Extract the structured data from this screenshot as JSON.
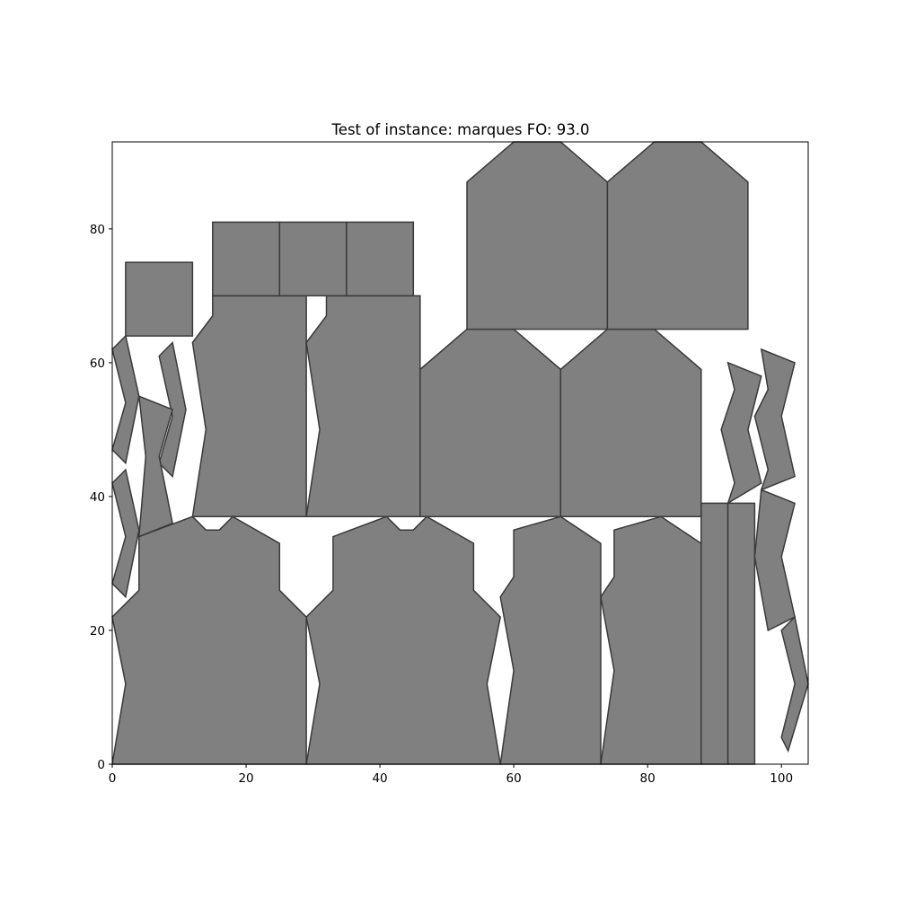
{
  "chart_data": {
    "type": "polygon-layout",
    "title": "Test of instance: marques  FO: 93.0",
    "xlabel": "",
    "ylabel": "",
    "xlim": [
      0,
      104
    ],
    "ylim": [
      0,
      93
    ],
    "xticks": [
      0,
      20,
      40,
      60,
      80,
      100
    ],
    "yticks": [
      0,
      20,
      40,
      60,
      80
    ],
    "grid": false,
    "fill_color": "#808080",
    "edge_color": "#3a3a3a",
    "pieces": [
      [
        [
          0,
          0
        ],
        [
          29,
          0
        ],
        [
          29,
          22
        ],
        [
          25,
          26
        ],
        [
          25,
          33
        ],
        [
          18,
          37
        ],
        [
          16,
          35
        ],
        [
          14,
          35
        ],
        [
          12,
          37
        ],
        [
          4,
          34
        ],
        [
          4,
          26
        ],
        [
          0,
          22
        ],
        [
          2,
          12
        ]
      ],
      [
        [
          29,
          0
        ],
        [
          58,
          0
        ],
        [
          56,
          12
        ],
        [
          58,
          22
        ],
        [
          54,
          26
        ],
        [
          54,
          33
        ],
        [
          47,
          37
        ],
        [
          45,
          35
        ],
        [
          43,
          35
        ],
        [
          41,
          37
        ],
        [
          33,
          34
        ],
        [
          33,
          26
        ],
        [
          29,
          22
        ],
        [
          31,
          12
        ]
      ],
      [
        [
          58,
          0
        ],
        [
          73,
          0
        ],
        [
          73,
          33
        ],
        [
          67,
          37
        ],
        [
          60,
          35
        ],
        [
          60,
          28
        ],
        [
          58,
          25
        ],
        [
          60,
          14
        ]
      ],
      [
        [
          73,
          0
        ],
        [
          88,
          0
        ],
        [
          88,
          33
        ],
        [
          82,
          37
        ],
        [
          75,
          35
        ],
        [
          75,
          28
        ],
        [
          73,
          25
        ],
        [
          75,
          14
        ]
      ],
      [
        [
          88,
          0
        ],
        [
          92,
          0
        ],
        [
          92,
          39
        ],
        [
          88,
          39
        ]
      ],
      [
        [
          92,
          0
        ],
        [
          96,
          0
        ],
        [
          96,
          39
        ],
        [
          92,
          39
        ]
      ],
      [
        [
          12,
          37
        ],
        [
          29,
          37
        ],
        [
          29,
          70
        ],
        [
          15,
          70
        ],
        [
          15,
          67
        ],
        [
          12,
          63
        ],
        [
          14,
          50
        ]
      ],
      [
        [
          29,
          37
        ],
        [
          46,
          37
        ],
        [
          46,
          70
        ],
        [
          32,
          70
        ],
        [
          32,
          67
        ],
        [
          29,
          63
        ],
        [
          31,
          50
        ]
      ],
      [
        [
          46,
          37
        ],
        [
          67,
          37
        ],
        [
          67,
          59
        ],
        [
          60,
          65
        ],
        [
          53,
          65
        ],
        [
          46,
          59
        ]
      ],
      [
        [
          67,
          37
        ],
        [
          88,
          37
        ],
        [
          88,
          59
        ],
        [
          81,
          65
        ],
        [
          74,
          65
        ],
        [
          67,
          59
        ]
      ],
      [
        [
          53,
          65
        ],
        [
          74,
          65
        ],
        [
          74,
          87
        ],
        [
          67,
          93
        ],
        [
          60,
          93
        ],
        [
          53,
          87
        ]
      ],
      [
        [
          74,
          65
        ],
        [
          95,
          65
        ],
        [
          95,
          87
        ],
        [
          88,
          93
        ],
        [
          81,
          93
        ],
        [
          74,
          87
        ]
      ],
      [
        [
          15,
          70
        ],
        [
          25,
          70
        ],
        [
          25,
          81
        ],
        [
          15,
          81
        ]
      ],
      [
        [
          25,
          70
        ],
        [
          35,
          70
        ],
        [
          35,
          81
        ],
        [
          25,
          81
        ]
      ],
      [
        [
          35,
          70
        ],
        [
          45,
          70
        ],
        [
          45,
          81
        ],
        [
          35,
          81
        ]
      ],
      [
        [
          2,
          64
        ],
        [
          12,
          64
        ],
        [
          12,
          75
        ],
        [
          2,
          75
        ]
      ],
      [
        [
          0,
          62
        ],
        [
          2,
          64
        ],
        [
          4,
          55
        ],
        [
          2,
          45
        ],
        [
          0,
          47
        ],
        [
          2,
          54
        ]
      ],
      [
        [
          0,
          42
        ],
        [
          2,
          44
        ],
        [
          4,
          35
        ],
        [
          2,
          25
        ],
        [
          0,
          27
        ],
        [
          2,
          34
        ]
      ],
      [
        [
          7,
          61
        ],
        [
          9,
          63
        ],
        [
          11,
          53
        ],
        [
          9,
          43
        ],
        [
          7,
          45
        ],
        [
          9,
          52
        ]
      ],
      [
        [
          4,
          34
        ],
        [
          9,
          36
        ],
        [
          7,
          46
        ],
        [
          9,
          53
        ],
        [
          4,
          55
        ],
        [
          5,
          46
        ]
      ],
      [
        [
          92,
          39
        ],
        [
          97,
          42
        ],
        [
          95,
          50
        ],
        [
          97,
          58
        ],
        [
          92,
          60
        ],
        [
          93,
          56
        ],
        [
          91,
          50
        ],
        [
          93,
          42
        ]
      ],
      [
        [
          97,
          41
        ],
        [
          102,
          43
        ],
        [
          100,
          52
        ],
        [
          102,
          60
        ],
        [
          97,
          62
        ],
        [
          98,
          56
        ],
        [
          96,
          52
        ],
        [
          98,
          44
        ]
      ],
      [
        [
          96,
          31
        ],
        [
          98,
          20
        ],
        [
          102,
          22
        ],
        [
          100,
          31
        ],
        [
          102,
          39
        ],
        [
          97,
          41
        ]
      ],
      [
        [
          101,
          2
        ],
        [
          104,
          12
        ],
        [
          102,
          22
        ],
        [
          100,
          20
        ],
        [
          102,
          12
        ],
        [
          100,
          4
        ]
      ]
    ]
  }
}
